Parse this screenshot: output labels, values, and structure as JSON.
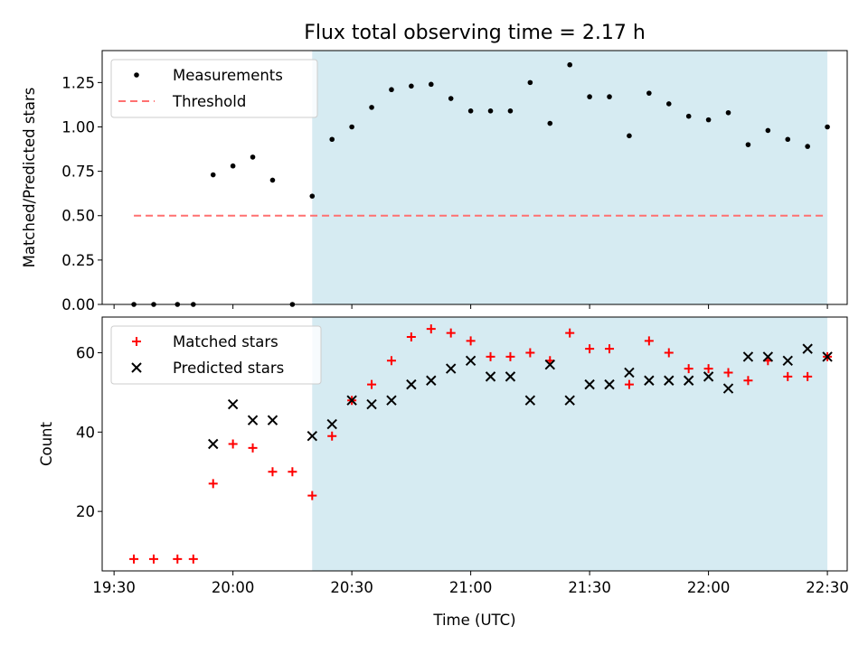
{
  "chart_data": {
    "title": "Flux total observing time = 2.17 h",
    "xlabel": "Time (UTC)",
    "x_ticks": [
      "19:30",
      "20:00",
      "20:30",
      "21:00",
      "21:30",
      "22:00",
      "22:30"
    ],
    "x_range": [
      "19:27",
      "22:35"
    ],
    "shaded_interval": [
      "20:20",
      "22:30"
    ],
    "shade_color": "#add8e6",
    "times": [
      "19:35",
      "19:40",
      "19:46",
      "19:50",
      "19:55",
      "20:00",
      "20:05",
      "20:10",
      "20:15",
      "20:20",
      "20:25",
      "20:30",
      "20:35",
      "20:40",
      "20:45",
      "20:50",
      "20:55",
      "21:00",
      "21:05",
      "21:10",
      "21:15",
      "21:20",
      "21:25",
      "21:30",
      "21:35",
      "21:40",
      "21:45",
      "21:50",
      "21:55",
      "22:00",
      "22:05",
      "22:10",
      "22:15",
      "22:20",
      "22:25",
      "22:30"
    ],
    "charts": [
      {
        "type": "scatter",
        "ylabel": "Matched/Predicted stars",
        "ylim": [
          0,
          1.43
        ],
        "y_ticks": [
          "0.00",
          "0.25",
          "0.50",
          "0.75",
          "1.00",
          "1.25"
        ],
        "y_tick_values": [
          0,
          0.25,
          0.5,
          0.75,
          1.0,
          1.25
        ],
        "legend_position": "upper-left",
        "series": [
          {
            "name": "Measurements",
            "marker": "dot",
            "color": "#000000",
            "values": [
              0.0,
              0.0,
              0.0,
              0.0,
              0.73,
              0.78,
              0.83,
              0.7,
              0.0,
              0.61,
              0.93,
              1.0,
              1.11,
              1.21,
              1.23,
              1.24,
              1.16,
              1.09,
              1.09,
              1.09,
              1.25,
              1.02,
              1.35,
              1.17,
              1.17,
              0.95,
              1.19,
              1.13,
              1.06,
              1.04,
              1.08,
              0.9,
              0.98,
              0.93,
              0.89,
              1.0
            ]
          },
          {
            "name": "Threshold",
            "marker": "dashed-line",
            "color": "#ff7070",
            "x": [
              "19:35",
              "22:30"
            ],
            "values": [
              0.5,
              0.5
            ]
          }
        ]
      },
      {
        "type": "scatter",
        "ylabel": "Count",
        "ylim": [
          5,
          69
        ],
        "y_ticks": [
          "20",
          "40",
          "60"
        ],
        "y_tick_values": [
          20,
          40,
          60
        ],
        "legend_position": "upper-left",
        "series": [
          {
            "name": "Matched stars",
            "marker": "plus",
            "color": "#ff0000",
            "values": [
              8,
              8,
              8,
              8,
              27,
              37,
              36,
              30,
              30,
              24,
              39,
              48,
              52,
              58,
              64,
              66,
              65,
              63,
              59,
              59,
              60,
              58,
              65,
              61,
              61,
              52,
              63,
              60,
              56,
              56,
              55,
              53,
              58,
              54,
              54,
              59
            ]
          },
          {
            "name": "Predicted stars",
            "marker": "x",
            "color": "#000000",
            "values": [
              null,
              null,
              null,
              null,
              37,
              47,
              43,
              43,
              null,
              39,
              42,
              48,
              47,
              48,
              52,
              53,
              56,
              58,
              54,
              54,
              48,
              57,
              48,
              52,
              52,
              55,
              53,
              53,
              53,
              54,
              51,
              59,
              59,
              58,
              61,
              59
            ]
          }
        ]
      }
    ]
  }
}
